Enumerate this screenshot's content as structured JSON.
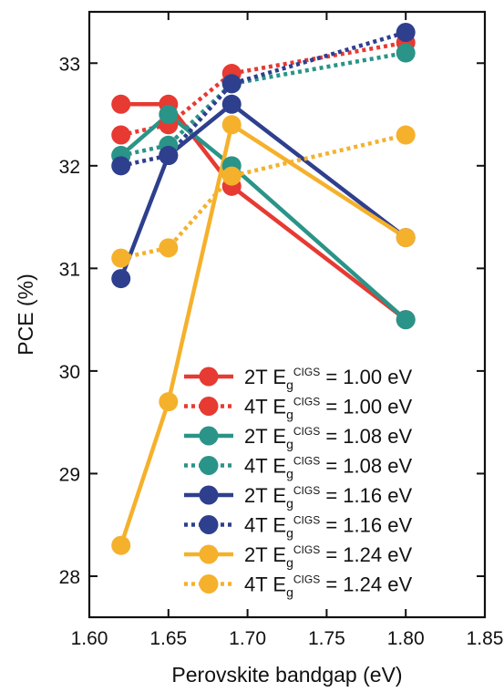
{
  "chart_data": {
    "type": "line",
    "xlabel": "Perovskite bandgap (eV)",
    "ylabel": "PCE (%)",
    "xlim": [
      1.6,
      1.85
    ],
    "ylim": [
      27.6,
      33.5
    ],
    "x_ticks": [
      "1.60",
      "1.65",
      "1.70",
      "1.75",
      "1.80",
      "1.85"
    ],
    "y_ticks": [
      "28",
      "29",
      "30",
      "31",
      "32",
      "33"
    ],
    "x": [
      1.62,
      1.65,
      1.69,
      1.8
    ],
    "grid": false,
    "legend_position": "bottom-right",
    "series": [
      {
        "name": "2T Eg^CIGS = 1.00 eV",
        "legend": {
          "prefix": "2T E",
          "sub": "g",
          "sup": "CIGS",
          "suffix": " = 1.00 eV"
        },
        "color": "#e63a32",
        "dash": "solid",
        "values": [
          32.6,
          32.6,
          31.8,
          30.5
        ]
      },
      {
        "name": "4T Eg^CIGS = 1.00 eV",
        "legend": {
          "prefix": "4T E",
          "sub": "g",
          "sup": "CIGS",
          "suffix": " = 1.00 eV"
        },
        "color": "#e63a32",
        "dash": "dotted",
        "values": [
          32.3,
          32.4,
          32.9,
          33.2
        ]
      },
      {
        "name": "2T Eg^CIGS = 1.08 eV",
        "legend": {
          "prefix": "2T E",
          "sub": "g",
          "sup": "CIGS",
          "suffix": " = 1.08 eV"
        },
        "color": "#2a9488",
        "dash": "solid",
        "values": [
          32.1,
          32.5,
          32.0,
          30.5
        ]
      },
      {
        "name": "4T Eg^CIGS = 1.08 eV",
        "legend": {
          "prefix": "4T E",
          "sub": "g",
          "sup": "CIGS",
          "suffix": " = 1.08 eV"
        },
        "color": "#2a9488",
        "dash": "dotted",
        "values": [
          32.1,
          32.2,
          32.8,
          33.1
        ]
      },
      {
        "name": "2T Eg^CIGS = 1.16 eV",
        "legend": {
          "prefix": "2T E",
          "sub": "g",
          "sup": "CIGS",
          "suffix": " = 1.16 eV"
        },
        "color": "#2e3f8e",
        "dash": "solid",
        "values": [
          30.9,
          32.1,
          32.6,
          31.3
        ]
      },
      {
        "name": "4T Eg^CIGS = 1.16 eV",
        "legend": {
          "prefix": "4T E",
          "sub": "g",
          "sup": "CIGS",
          "suffix": " = 1.16 eV"
        },
        "color": "#2e3f8e",
        "dash": "dotted",
        "values": [
          32.0,
          32.1,
          32.8,
          33.3
        ]
      },
      {
        "name": "2T Eg^CIGS = 1.24 eV",
        "legend": {
          "prefix": "2T E",
          "sub": "g",
          "sup": "CIGS",
          "suffix": " = 1.24 eV"
        },
        "color": "#f5b12c",
        "dash": "solid",
        "values": [
          28.3,
          29.7,
          32.4,
          31.3
        ]
      },
      {
        "name": "4T Eg^CIGS = 1.24 eV",
        "legend": {
          "prefix": "4T E",
          "sub": "g",
          "sup": "CIGS",
          "suffix": " = 1.24 eV"
        },
        "color": "#f5b12c",
        "dash": "dotted",
        "values": [
          31.1,
          31.2,
          31.9,
          32.3
        ]
      }
    ]
  }
}
